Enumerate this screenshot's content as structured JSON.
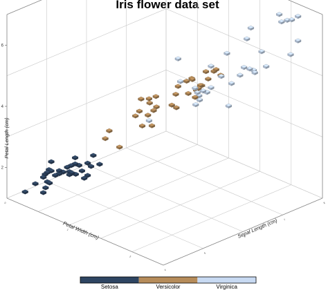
{
  "chart_data": {
    "type": "scatter",
    "title": "Iris flower data set",
    "x_axis": {
      "label": "Sepal Length (cm)",
      "range": [
        4,
        8
      ],
      "ticks": [
        "4",
        "5",
        "6",
        "7",
        "8"
      ]
    },
    "y_axis": {
      "label": "Petal Width (cm)",
      "range": [
        0,
        2.5
      ],
      "ticks": [
        "0",
        "1",
        "2"
      ]
    },
    "z_axis": {
      "label": "Petal Length (cm)",
      "range": [
        1,
        7
      ],
      "ticks": [
        "2",
        "4",
        "6"
      ]
    },
    "grid": true,
    "legend": {
      "placement": "bottom",
      "entries": [
        "Setosa",
        "Versicolor",
        "Virginica"
      ]
    },
    "colors": {
      "Setosa": "#2e4562",
      "Versicolor": "#b68c5a",
      "Virginica": "#c8daf2"
    },
    "series": [
      {
        "name": "Setosa",
        "color": "#2e4562",
        "points": [
          [
            5.1,
            0.2,
            1.4
          ],
          [
            4.9,
            0.2,
            1.4
          ],
          [
            4.7,
            0.2,
            1.3
          ],
          [
            4.6,
            0.2,
            1.5
          ],
          [
            5.0,
            0.2,
            1.4
          ],
          [
            5.4,
            0.4,
            1.7
          ],
          [
            4.6,
            0.3,
            1.4
          ],
          [
            5.0,
            0.2,
            1.5
          ],
          [
            4.4,
            0.2,
            1.4
          ],
          [
            4.9,
            0.1,
            1.5
          ],
          [
            5.4,
            0.2,
            1.5
          ],
          [
            4.8,
            0.2,
            1.6
          ],
          [
            4.8,
            0.1,
            1.4
          ],
          [
            4.3,
            0.1,
            1.1
          ],
          [
            5.8,
            0.2,
            1.2
          ],
          [
            5.7,
            0.4,
            1.5
          ],
          [
            5.4,
            0.4,
            1.3
          ],
          [
            5.1,
            0.3,
            1.4
          ],
          [
            5.7,
            0.3,
            1.7
          ],
          [
            5.1,
            0.3,
            1.5
          ],
          [
            5.4,
            0.2,
            1.7
          ],
          [
            5.1,
            0.4,
            1.5
          ],
          [
            4.6,
            0.2,
            1.0
          ],
          [
            5.1,
            0.5,
            1.7
          ],
          [
            4.8,
            0.2,
            1.9
          ],
          [
            5.0,
            0.4,
            1.6
          ],
          [
            5.2,
            0.2,
            1.5
          ],
          [
            4.7,
            0.2,
            1.6
          ],
          [
            5.5,
            0.2,
            1.4
          ],
          [
            4.5,
            0.3,
            1.3
          ],
          [
            5.3,
            0.2,
            1.5
          ],
          [
            5.0,
            0.6,
            1.6
          ]
        ]
      },
      {
        "name": "Versicolor",
        "color": "#b68c5a",
        "points": [
          [
            7.0,
            1.4,
            4.7
          ],
          [
            6.4,
            1.5,
            4.5
          ],
          [
            6.9,
            1.5,
            4.9
          ],
          [
            5.5,
            1.3,
            4.0
          ],
          [
            6.5,
            1.5,
            4.6
          ],
          [
            5.7,
            1.3,
            4.5
          ],
          [
            6.3,
            1.6,
            4.7
          ],
          [
            4.9,
            1.0,
            3.3
          ],
          [
            6.6,
            1.3,
            4.6
          ],
          [
            5.2,
            1.4,
            3.9
          ],
          [
            5.0,
            1.0,
            3.5
          ],
          [
            5.9,
            1.5,
            4.2
          ],
          [
            6.0,
            1.0,
            4.0
          ],
          [
            6.1,
            1.4,
            4.7
          ],
          [
            5.6,
            1.3,
            3.6
          ],
          [
            6.7,
            1.4,
            4.4
          ],
          [
            5.8,
            1.0,
            4.1
          ],
          [
            6.2,
            1.5,
            4.5
          ],
          [
            5.6,
            1.1,
            3.9
          ],
          [
            5.9,
            1.8,
            4.8
          ],
          [
            6.1,
            1.3,
            4.0
          ],
          [
            6.3,
            1.5,
            4.9
          ],
          [
            6.8,
            1.4,
            4.8
          ],
          [
            6.7,
            1.7,
            5.0
          ],
          [
            5.5,
            1.1,
            3.8
          ],
          [
            5.8,
            1.2,
            3.9
          ],
          [
            6.0,
            1.6,
            5.1
          ],
          [
            5.4,
            1.5,
            4.5
          ],
          [
            6.7,
            1.5,
            4.7
          ],
          [
            5.7,
            1.2,
            4.2
          ],
          [
            5.1,
            1.1,
            3.0
          ],
          [
            6.2,
            1.3,
            4.3
          ]
        ]
      },
      {
        "name": "Virginica",
        "color": "#c8daf2",
        "points": [
          [
            6.3,
            2.5,
            6.0
          ],
          [
            5.8,
            1.9,
            5.1
          ],
          [
            7.1,
            2.1,
            5.9
          ],
          [
            6.3,
            1.8,
            5.6
          ],
          [
            6.5,
            2.2,
            5.8
          ],
          [
            7.6,
            2.1,
            6.6
          ],
          [
            4.9,
            1.7,
            4.5
          ],
          [
            7.3,
            1.8,
            6.3
          ],
          [
            6.7,
            1.8,
            5.8
          ],
          [
            7.2,
            2.5,
            6.1
          ],
          [
            6.5,
            2.0,
            5.1
          ],
          [
            6.4,
            1.9,
            5.3
          ],
          [
            6.8,
            2.1,
            5.5
          ],
          [
            5.7,
            2.0,
            5.0
          ],
          [
            5.8,
            2.4,
            5.1
          ],
          [
            7.7,
            2.2,
            6.7
          ],
          [
            7.7,
            2.3,
            6.9
          ],
          [
            6.0,
            1.5,
            5.0
          ],
          [
            6.9,
            2.3,
            5.7
          ],
          [
            5.6,
            2.0,
            4.9
          ],
          [
            7.7,
            2.0,
            6.7
          ],
          [
            6.3,
            1.8,
            4.9
          ],
          [
            7.2,
            1.8,
            6.0
          ],
          [
            6.2,
            1.8,
            4.8
          ],
          [
            6.1,
            1.8,
            4.9
          ],
          [
            7.9,
            2.0,
            6.4
          ],
          [
            6.4,
            2.2,
            5.6
          ],
          [
            6.1,
            1.4,
            5.6
          ],
          [
            7.7,
            2.3,
            6.1
          ],
          [
            6.0,
            1.8,
            4.8
          ],
          [
            6.9,
            2.1,
            5.4
          ],
          [
            5.9,
            1.8,
            5.1
          ]
        ]
      }
    ]
  }
}
